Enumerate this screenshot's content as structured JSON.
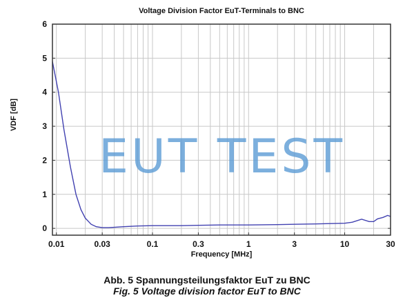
{
  "chart_data": {
    "type": "line",
    "title": "Voltage Division Factor EuT-Terminals to BNC",
    "xlabel": "Frequency [MHz]",
    "ylabel": "VDF [dB]",
    "xscale": "log",
    "xlim": [
      0.0091,
      30
    ],
    "ylim": [
      -0.2,
      6
    ],
    "x_ticks": [
      0.01,
      0.03,
      0.1,
      0.3,
      1,
      3,
      10,
      30
    ],
    "x_tick_labels": [
      "0.01",
      "0.03",
      "0.1",
      "0.3",
      "1",
      "3",
      "10",
      "30"
    ],
    "y_ticks": [
      0,
      1,
      2,
      3,
      4,
      5,
      6
    ],
    "y_tick_labels": [
      "0",
      "1",
      "2",
      "3",
      "4",
      "5",
      "6"
    ],
    "grid": true,
    "legend": null,
    "series": [
      {
        "name": "VDF",
        "color": "#4040b0",
        "x": [
          0.0091,
          0.0105,
          0.012,
          0.014,
          0.016,
          0.018,
          0.02,
          0.023,
          0.026,
          0.03,
          0.035,
          0.04,
          0.05,
          0.07,
          0.1,
          0.2,
          0.3,
          0.5,
          1,
          2,
          3,
          5,
          7,
          10,
          12,
          15,
          18,
          20,
          22,
          25,
          28,
          30
        ],
        "values": [
          4.9,
          4.0,
          2.9,
          1.8,
          1.0,
          0.55,
          0.3,
          0.12,
          0.05,
          0.02,
          0.02,
          0.03,
          0.05,
          0.07,
          0.08,
          0.08,
          0.09,
          0.1,
          0.1,
          0.11,
          0.12,
          0.13,
          0.14,
          0.15,
          0.18,
          0.27,
          0.2,
          0.2,
          0.28,
          0.32,
          0.38,
          0.35
        ]
      }
    ],
    "annotations": [
      "EUT TEST"
    ]
  },
  "captions": {
    "german": "Abb. 5 Spannungsteilungsfaktor EuT zu BNC",
    "english": "Fig. 5 Voltage division factor EuT to BNC"
  },
  "colors": {
    "line": "#4040b0",
    "grid": "#c8c8c8",
    "frame": "#333333",
    "watermark": "#5b9bd5"
  }
}
